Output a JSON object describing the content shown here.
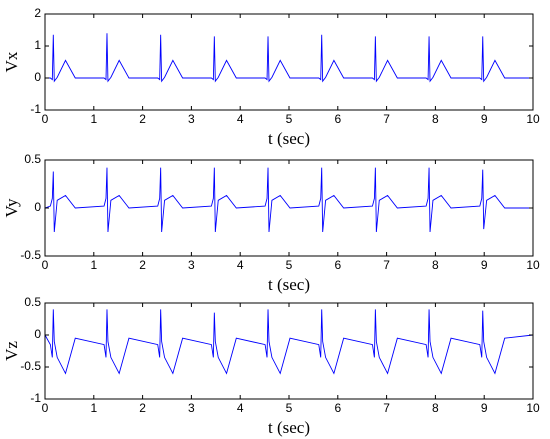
{
  "chart_data": [
    {
      "type": "line",
      "xlabel": "t (sec)",
      "ylabel": "Vx",
      "color": "#0000ff",
      "xlim": [
        0,
        10
      ],
      "xticks": [
        0,
        1,
        2,
        3,
        4,
        5,
        6,
        7,
        8,
        9,
        10
      ],
      "ylim": [
        -1,
        2
      ],
      "yticks": [
        -1,
        0,
        1,
        2
      ],
      "x": [
        0,
        0.11,
        0.15,
        0.17,
        0.19,
        0.25,
        0.42,
        0.62,
        1.21,
        1.25,
        1.27,
        1.29,
        1.35,
        1.52,
        1.72,
        2.31,
        2.35,
        2.37,
        2.39,
        2.45,
        2.62,
        2.82,
        3.41,
        3.45,
        3.47,
        3.49,
        3.55,
        3.72,
        3.92,
        4.51,
        4.55,
        4.57,
        4.59,
        4.65,
        4.82,
        5.02,
        5.61,
        5.65,
        5.67,
        5.69,
        5.75,
        5.92,
        6.12,
        6.71,
        6.75,
        6.77,
        6.79,
        6.85,
        7.02,
        7.22,
        7.81,
        7.85,
        7.87,
        7.89,
        7.95,
        8.12,
        8.32,
        8.91,
        8.95,
        8.97,
        8.99,
        9.05,
        9.22,
        9.42,
        10
      ],
      "values": [
        0,
        0,
        -0.05,
        1.35,
        -0.1,
        0.02,
        0.55,
        0,
        0,
        -0.05,
        1.4,
        -0.1,
        0.02,
        0.55,
        0,
        0,
        -0.05,
        1.35,
        -0.1,
        0.02,
        0.55,
        0,
        0,
        -0.05,
        1.3,
        -0.1,
        0.02,
        0.55,
        0,
        0,
        -0.05,
        1.3,
        -0.1,
        0.02,
        0.55,
        0,
        0,
        -0.05,
        1.35,
        -0.1,
        0.02,
        0.55,
        0,
        0,
        -0.05,
        1.3,
        -0.1,
        0.02,
        0.55,
        0,
        0,
        -0.05,
        1.3,
        -0.1,
        0.02,
        0.55,
        0,
        0,
        -0.05,
        1.3,
        -0.1,
        0.02,
        0.55,
        0,
        0
      ]
    },
    {
      "type": "line",
      "xlabel": "t (sec)",
      "ylabel": "Vy",
      "color": "#0000ff",
      "xlim": [
        0,
        10
      ],
      "xticks": [
        0,
        1,
        2,
        3,
        4,
        5,
        6,
        7,
        8,
        9,
        10
      ],
      "ylim": [
        -0.5,
        0.5
      ],
      "yticks": [
        -0.5,
        0,
        0.5
      ],
      "x": [
        0,
        0.11,
        0.15,
        0.17,
        0.19,
        0.25,
        0.42,
        0.62,
        1.21,
        1.25,
        1.27,
        1.29,
        1.35,
        1.52,
        1.72,
        2.31,
        2.35,
        2.37,
        2.39,
        2.45,
        2.62,
        2.82,
        3.41,
        3.45,
        3.47,
        3.49,
        3.55,
        3.72,
        3.92,
        4.51,
        4.55,
        4.57,
        4.59,
        4.65,
        4.82,
        5.02,
        5.61,
        5.65,
        5.67,
        5.69,
        5.75,
        5.92,
        6.12,
        6.71,
        6.75,
        6.77,
        6.79,
        6.85,
        7.02,
        7.22,
        7.81,
        7.85,
        7.87,
        7.89,
        7.95,
        8.12,
        8.32,
        8.91,
        8.95,
        8.97,
        8.99,
        9.05,
        9.22,
        9.42,
        10
      ],
      "values": [
        0,
        0.02,
        0.1,
        0.38,
        -0.25,
        0.08,
        0.13,
        0,
        0.02,
        0.1,
        0.42,
        -0.25,
        0.08,
        0.13,
        0,
        0.02,
        0.1,
        0.42,
        -0.25,
        0.08,
        0.13,
        0,
        0.02,
        0.1,
        0.42,
        -0.25,
        0.08,
        0.13,
        0,
        0.02,
        0.1,
        0.42,
        -0.25,
        0.08,
        0.13,
        0,
        0.02,
        0.1,
        0.42,
        -0.25,
        0.08,
        0.13,
        0,
        0.02,
        0.1,
        0.42,
        -0.25,
        0.08,
        0.13,
        0,
        0.02,
        0.1,
        0.42,
        -0.25,
        0.08,
        0.13,
        0,
        0.02,
        0.1,
        0.4,
        -0.22,
        0.08,
        0.13,
        0,
        0
      ]
    },
    {
      "type": "line",
      "xlabel": "t (sec)",
      "ylabel": "Vz",
      "color": "#0000ff",
      "xlim": [
        0,
        10
      ],
      "xticks": [
        0,
        1,
        2,
        3,
        4,
        5,
        6,
        7,
        8,
        9,
        10
      ],
      "ylim": [
        -1,
        0.5
      ],
      "yticks": [
        -1,
        -0.5,
        0,
        0.5
      ],
      "x": [
        0,
        0.11,
        0.15,
        0.17,
        0.19,
        0.25,
        0.42,
        0.62,
        1.21,
        1.25,
        1.27,
        1.29,
        1.35,
        1.52,
        1.72,
        2.31,
        2.35,
        2.37,
        2.39,
        2.45,
        2.62,
        2.82,
        3.41,
        3.45,
        3.47,
        3.49,
        3.55,
        3.72,
        3.92,
        4.51,
        4.55,
        4.57,
        4.59,
        4.65,
        4.82,
        5.02,
        5.61,
        5.65,
        5.67,
        5.69,
        5.75,
        5.92,
        6.12,
        6.71,
        6.75,
        6.77,
        6.79,
        6.85,
        7.02,
        7.22,
        7.81,
        7.85,
        7.87,
        7.89,
        7.95,
        8.12,
        8.32,
        8.91,
        8.95,
        8.97,
        8.99,
        9.05,
        9.22,
        9.42,
        10
      ],
      "values": [
        0,
        -0.15,
        -0.35,
        0.4,
        -0.1,
        -0.35,
        -0.6,
        -0.05,
        -0.15,
        -0.35,
        0.4,
        -0.1,
        -0.35,
        -0.6,
        -0.05,
        -0.15,
        -0.35,
        0.4,
        -0.1,
        -0.35,
        -0.6,
        -0.05,
        -0.15,
        -0.35,
        0.35,
        -0.1,
        -0.35,
        -0.6,
        -0.05,
        -0.15,
        -0.35,
        0.4,
        -0.1,
        -0.35,
        -0.6,
        -0.05,
        -0.15,
        -0.35,
        0.4,
        -0.1,
        -0.35,
        -0.6,
        -0.05,
        -0.15,
        -0.35,
        0.4,
        -0.1,
        -0.35,
        -0.6,
        -0.05,
        -0.15,
        -0.35,
        0.4,
        -0.1,
        -0.35,
        -0.6,
        -0.05,
        -0.15,
        -0.35,
        0.38,
        -0.1,
        -0.35,
        -0.6,
        -0.05,
        0
      ]
    }
  ]
}
